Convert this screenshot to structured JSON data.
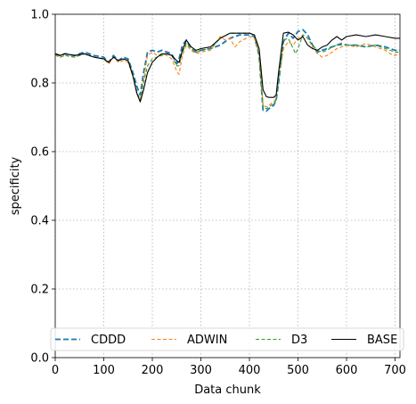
{
  "chart_data": {
    "type": "line",
    "xlabel": "Data chunk",
    "ylabel": "specificity",
    "xlim": [
      0,
      710
    ],
    "ylim": [
      0.0,
      1.0
    ],
    "xticks": [
      0,
      100,
      200,
      300,
      400,
      500,
      600,
      700
    ],
    "yticks": [
      0.0,
      0.2,
      0.4,
      0.6,
      0.8,
      1.0
    ],
    "xtick_labels": [
      "0",
      "100",
      "200",
      "300",
      "400",
      "500",
      "600",
      "700"
    ],
    "ytick_labels": [
      "0.0",
      "0.2",
      "0.4",
      "0.6",
      "0.8",
      "1.0"
    ],
    "grid": true,
    "legend_position": "lower center",
    "legend_columns": 4,
    "series": [
      {
        "name": "CDDD",
        "color": "#1f77b4",
        "style": "dashed",
        "x": [
          0,
          10,
          20,
          40,
          60,
          80,
          100,
          110,
          120,
          130,
          140,
          150,
          160,
          168,
          175,
          182,
          190,
          200,
          210,
          220,
          230,
          240,
          250,
          255,
          262,
          270,
          280,
          290,
          300,
          320,
          340,
          360,
          380,
          400,
          410,
          420,
          428,
          435,
          440,
          450,
          455,
          460,
          470,
          480,
          490,
          500,
          510,
          520,
          530,
          540,
          550,
          560,
          570,
          580,
          590,
          600,
          620,
          640,
          660,
          680,
          700,
          710
        ],
        "y": [
          0.885,
          0.88,
          0.885,
          0.88,
          0.89,
          0.88,
          0.875,
          0.86,
          0.88,
          0.865,
          0.875,
          0.87,
          0.83,
          0.79,
          0.765,
          0.83,
          0.89,
          0.895,
          0.89,
          0.895,
          0.89,
          0.885,
          0.855,
          0.87,
          0.91,
          0.925,
          0.9,
          0.89,
          0.895,
          0.9,
          0.91,
          0.93,
          0.94,
          0.94,
          0.935,
          0.88,
          0.72,
          0.718,
          0.725,
          0.735,
          0.75,
          0.8,
          0.92,
          0.945,
          0.93,
          0.95,
          0.955,
          0.94,
          0.91,
          0.89,
          0.895,
          0.9,
          0.905,
          0.91,
          0.915,
          0.91,
          0.91,
          0.905,
          0.91,
          0.905,
          0.895,
          0.895
        ]
      },
      {
        "name": "ADWIN",
        "color": "#ff7f0e",
        "style": "dashed",
        "x": [
          0,
          10,
          20,
          40,
          60,
          80,
          100,
          110,
          120,
          130,
          140,
          150,
          160,
          168,
          175,
          182,
          190,
          200,
          210,
          220,
          230,
          240,
          250,
          255,
          262,
          270,
          280,
          290,
          300,
          320,
          340,
          350,
          360,
          370,
          380,
          400,
          410,
          420,
          428,
          435,
          440,
          450,
          455,
          460,
          470,
          480,
          490,
          500,
          510,
          520,
          530,
          540,
          550,
          560,
          570,
          580,
          600,
          620,
          640,
          660,
          680,
          690,
          700,
          710
        ],
        "y": [
          0.88,
          0.875,
          0.88,
          0.875,
          0.885,
          0.875,
          0.87,
          0.855,
          0.875,
          0.86,
          0.865,
          0.86,
          0.82,
          0.77,
          0.745,
          0.81,
          0.88,
          0.89,
          0.88,
          0.885,
          0.88,
          0.87,
          0.835,
          0.825,
          0.88,
          0.91,
          0.895,
          0.885,
          0.89,
          0.895,
          0.935,
          0.925,
          0.93,
          0.905,
          0.92,
          0.935,
          0.93,
          0.885,
          0.735,
          0.73,
          0.735,
          0.745,
          0.755,
          0.81,
          0.9,
          0.92,
          0.91,
          0.93,
          0.94,
          0.93,
          0.905,
          0.885,
          0.875,
          0.88,
          0.89,
          0.9,
          0.91,
          0.905,
          0.915,
          0.905,
          0.895,
          0.885,
          0.88,
          0.885
        ]
      },
      {
        "name": "D3",
        "color": "#2ca02c",
        "style": "dashed",
        "x": [
          0,
          10,
          20,
          40,
          60,
          80,
          100,
          110,
          120,
          130,
          140,
          150,
          160,
          168,
          175,
          182,
          190,
          200,
          210,
          220,
          230,
          240,
          250,
          255,
          262,
          270,
          280,
          290,
          300,
          320,
          340,
          360,
          380,
          400,
          410,
          420,
          428,
          435,
          440,
          450,
          455,
          460,
          470,
          480,
          490,
          495,
          500,
          510,
          520,
          530,
          540,
          550,
          560,
          570,
          580,
          600,
          620,
          640,
          660,
          680,
          700,
          710
        ],
        "y": [
          0.885,
          0.875,
          0.88,
          0.875,
          0.885,
          0.875,
          0.87,
          0.86,
          0.875,
          0.865,
          0.87,
          0.865,
          0.825,
          0.775,
          0.75,
          0.8,
          0.85,
          0.87,
          0.875,
          0.88,
          0.885,
          0.88,
          0.85,
          0.85,
          0.89,
          0.915,
          0.9,
          0.89,
          0.895,
          0.9,
          0.93,
          0.945,
          0.945,
          0.945,
          0.94,
          0.885,
          0.73,
          0.725,
          0.73,
          0.74,
          0.75,
          0.81,
          0.925,
          0.93,
          0.9,
          0.885,
          0.9,
          0.94,
          0.93,
          0.91,
          0.895,
          0.89,
          0.895,
          0.905,
          0.91,
          0.91,
          0.91,
          0.905,
          0.91,
          0.9,
          0.89,
          0.89
        ]
      },
      {
        "name": "BASE",
        "color": "#000000",
        "style": "solid",
        "x": [
          0,
          10,
          20,
          40,
          60,
          80,
          100,
          110,
          120,
          130,
          140,
          150,
          160,
          168,
          175,
          182,
          190,
          200,
          210,
          220,
          230,
          240,
          250,
          255,
          262,
          270,
          280,
          290,
          300,
          320,
          340,
          360,
          380,
          400,
          410,
          420,
          428,
          435,
          440,
          450,
          455,
          460,
          470,
          480,
          490,
          500,
          510,
          520,
          530,
          540,
          550,
          560,
          570,
          580,
          590,
          600,
          620,
          640,
          660,
          680,
          700,
          710
        ],
        "y": [
          0.885,
          0.88,
          0.885,
          0.88,
          0.885,
          0.875,
          0.87,
          0.86,
          0.875,
          0.865,
          0.87,
          0.865,
          0.82,
          0.77,
          0.745,
          0.78,
          0.83,
          0.86,
          0.875,
          0.885,
          0.885,
          0.88,
          0.865,
          0.86,
          0.895,
          0.925,
          0.905,
          0.895,
          0.9,
          0.905,
          0.93,
          0.945,
          0.945,
          0.945,
          0.94,
          0.9,
          0.78,
          0.76,
          0.758,
          0.758,
          0.765,
          0.83,
          0.945,
          0.948,
          0.94,
          0.925,
          0.935,
          0.91,
          0.9,
          0.895,
          0.905,
          0.91,
          0.925,
          0.935,
          0.925,
          0.935,
          0.94,
          0.935,
          0.94,
          0.935,
          0.93,
          0.93
        ]
      }
    ]
  }
}
